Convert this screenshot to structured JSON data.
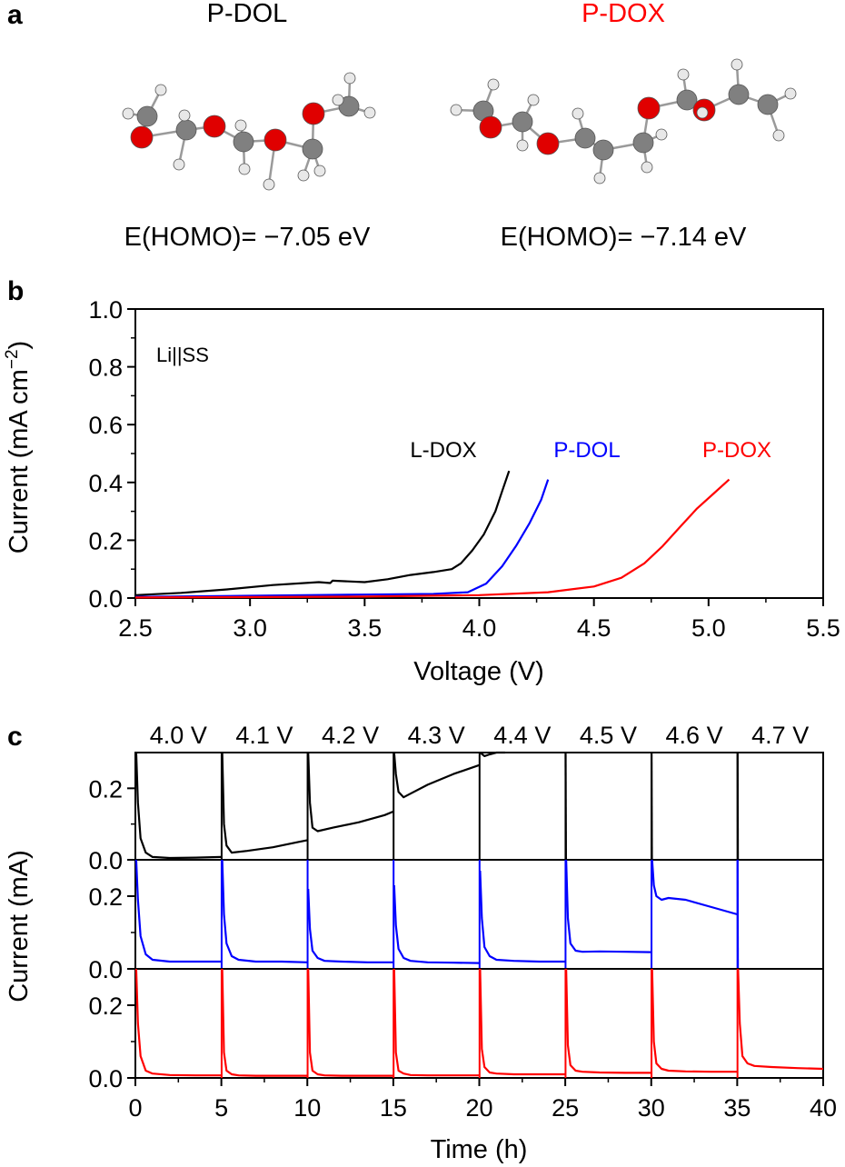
{
  "panel_a": {
    "label": "a",
    "molecules": [
      {
        "name": "P-DOL",
        "name_color": "#000000",
        "homo": "E(HOMO)= −7.05 eV"
      },
      {
        "name": "P-DOX",
        "name_color": "#ff0000",
        "homo": "E(HOMO)= −7.14 eV"
      }
    ],
    "atom_colors": {
      "oxygen": "#e00000",
      "carbon": "#808080",
      "hydrogen": "#e8e8e8"
    }
  },
  "chart_data": [
    {
      "panel": "b",
      "type": "line",
      "xlabel": "Voltage (V)",
      "ylabel_main": "Current (mA cm",
      "ylabel_sup": "−2",
      "ylabel_tail": ")",
      "xlim": [
        2.5,
        5.5
      ],
      "ylim": [
        0.0,
        1.0
      ],
      "xticks": [
        "2.5",
        "3.0",
        "3.5",
        "4.0",
        "4.5",
        "5.0",
        "5.5"
      ],
      "yticks": [
        "0.0",
        "0.2",
        "0.4",
        "0.6",
        "0.8",
        "1.0"
      ],
      "annotation": "Li||SS",
      "series": [
        {
          "name": "L-DOX",
          "color": "#000000",
          "x": [
            2.5,
            2.7,
            2.9,
            3.1,
            3.3,
            3.35,
            3.36,
            3.5,
            3.6,
            3.7,
            3.8,
            3.88,
            3.92,
            3.97,
            4.02,
            4.07,
            4.1,
            4.13
          ],
          "y": [
            0.01,
            0.018,
            0.03,
            0.045,
            0.055,
            0.052,
            0.06,
            0.055,
            0.065,
            0.08,
            0.09,
            0.1,
            0.12,
            0.165,
            0.22,
            0.3,
            0.37,
            0.44
          ]
        },
        {
          "name": "P-DOL",
          "color": "#0000ff",
          "x": [
            2.5,
            3.0,
            3.5,
            3.8,
            3.95,
            4.03,
            4.1,
            4.16,
            4.22,
            4.27,
            4.3
          ],
          "y": [
            0.004,
            0.008,
            0.012,
            0.014,
            0.02,
            0.05,
            0.11,
            0.18,
            0.26,
            0.34,
            0.41
          ]
        },
        {
          "name": "P-DOX",
          "color": "#ff0000",
          "x": [
            2.5,
            3.5,
            4.0,
            4.3,
            4.5,
            4.62,
            4.72,
            4.8,
            4.88,
            4.95,
            5.02,
            5.09
          ],
          "y": [
            0.002,
            0.005,
            0.01,
            0.02,
            0.04,
            0.07,
            0.12,
            0.18,
            0.25,
            0.31,
            0.36,
            0.41
          ]
        }
      ]
    },
    {
      "panel": "c",
      "type": "line",
      "xlabel": "Time (h)",
      "ylabel": "Current (mA)",
      "xlim": [
        0,
        40
      ],
      "ylim": [
        0.0,
        0.3
      ],
      "xticks": [
        "0",
        "5",
        "10",
        "15",
        "20",
        "25",
        "30",
        "35",
        "40"
      ],
      "yticks": [
        "0.0",
        "0.2"
      ],
      "step_labels": [
        "4.0 V",
        "4.1 V",
        "4.2 V",
        "4.3 V",
        "4.4 V",
        "4.5 V",
        "4.6 V",
        "4.7 V"
      ],
      "step_starts": [
        0,
        5,
        10,
        15,
        20,
        25,
        30,
        35
      ],
      "series": [
        {
          "name": "L-DOX",
          "color": "#000000",
          "segments": [
            {
              "x": [
                0.05,
                0.15,
                0.3,
                0.6,
                1.0,
                2.0,
                3.5,
                5.0
              ],
              "y": [
                0.3,
                0.16,
                0.06,
                0.02,
                0.008,
                0.005,
                0.006,
                0.008
              ]
            },
            {
              "x": [
                5.05,
                5.15,
                5.3,
                5.6,
                6.5,
                8.0,
                9.5,
                10.0
              ],
              "y": [
                0.3,
                0.1,
                0.04,
                0.02,
                0.025,
                0.035,
                0.05,
                0.055
              ]
            },
            {
              "x": [
                10.05,
                10.15,
                10.3,
                10.6,
                11.5,
                13.0,
                14.5,
                15.0
              ],
              "y": [
                0.3,
                0.16,
                0.09,
                0.08,
                0.09,
                0.105,
                0.125,
                0.135
              ]
            },
            {
              "x": [
                15.05,
                15.15,
                15.3,
                15.6,
                16.0,
                17.0,
                18.5,
                20.0
              ],
              "y": [
                0.3,
                0.24,
                0.19,
                0.175,
                0.185,
                0.21,
                0.24,
                0.265
              ]
            },
            {
              "x": [
                20.05,
                20.3,
                20.6,
                21.0,
                21.5
              ],
              "y": [
                0.3,
                0.29,
                0.295,
                0.3,
                0.3
              ]
            },
            {
              "x": [
                25.02,
                25.04
              ],
              "y": [
                0.3,
                0.0
              ]
            },
            {
              "x": [
                30.02,
                30.04
              ],
              "y": [
                0.3,
                0.0
              ]
            },
            {
              "x": [
                35.02,
                35.04
              ],
              "y": [
                0.3,
                0.0
              ]
            }
          ]
        },
        {
          "name": "P-DOL",
          "color": "#0000ff",
          "segments": [
            {
              "x": [
                0.05,
                0.15,
                0.3,
                0.6,
                1.0,
                2.0,
                3.5,
                5.0
              ],
              "y": [
                0.3,
                0.19,
                0.09,
                0.04,
                0.025,
                0.02,
                0.02,
                0.02
              ]
            },
            {
              "x": [
                5.05,
                5.15,
                5.3,
                5.6,
                6.0,
                7.0,
                8.5,
                10.0
              ],
              "y": [
                0.3,
                0.15,
                0.07,
                0.035,
                0.025,
                0.02,
                0.02,
                0.018
              ]
            },
            {
              "x": [
                10.05,
                10.15,
                10.3,
                10.6,
                11.0,
                12.0,
                13.5,
                15.0
              ],
              "y": [
                0.22,
                0.11,
                0.05,
                0.03,
                0.022,
                0.02,
                0.018,
                0.018
              ]
            },
            {
              "x": [
                15.05,
                15.15,
                15.3,
                15.6,
                16.0,
                17.0,
                18.5,
                20.0
              ],
              "y": [
                0.23,
                0.12,
                0.055,
                0.03,
                0.022,
                0.018,
                0.017,
                0.016
              ]
            },
            {
              "x": [
                20.05,
                20.15,
                20.3,
                20.6,
                21.0,
                22.0,
                23.5,
                25.0
              ],
              "y": [
                0.27,
                0.14,
                0.06,
                0.035,
                0.025,
                0.022,
                0.02,
                0.02
              ]
            },
            {
              "x": [
                25.05,
                25.15,
                25.3,
                25.6,
                26.0,
                27.0,
                28.5,
                30.0
              ],
              "y": [
                0.3,
                0.14,
                0.07,
                0.05,
                0.047,
                0.048,
                0.047,
                0.046
              ]
            },
            {
              "x": [
                30.05,
                30.15,
                30.3,
                30.6,
                31.0,
                32.0,
                33.5,
                35.0
              ],
              "y": [
                0.3,
                0.23,
                0.2,
                0.19,
                0.195,
                0.19,
                0.17,
                0.15
              ]
            },
            {
              "x": [
                35.02,
                35.04
              ],
              "y": [
                0.3,
                0.0
              ]
            }
          ]
        },
        {
          "name": "P-DOX",
          "color": "#ff0000",
          "segments": [
            {
              "x": [
                0.05,
                0.15,
                0.3,
                0.6,
                1.0,
                2.0,
                3.5,
                5.0
              ],
              "y": [
                0.3,
                0.15,
                0.06,
                0.02,
                0.012,
                0.008,
                0.007,
                0.007
              ]
            },
            {
              "x": [
                5.05,
                5.15,
                5.3,
                5.6,
                6.0,
                7.0,
                8.5,
                10.0
              ],
              "y": [
                0.3,
                0.07,
                0.02,
                0.01,
                0.007,
                0.006,
                0.006,
                0.006
              ]
            },
            {
              "x": [
                10.05,
                10.15,
                10.3,
                10.6,
                11.0,
                12.0,
                13.5,
                15.0
              ],
              "y": [
                0.3,
                0.07,
                0.02,
                0.01,
                0.007,
                0.006,
                0.006,
                0.006
              ]
            },
            {
              "x": [
                15.05,
                15.15,
                15.3,
                15.6,
                16.0,
                17.0,
                18.5,
                20.0
              ],
              "y": [
                0.3,
                0.07,
                0.02,
                0.012,
                0.008,
                0.007,
                0.007,
                0.007
              ]
            },
            {
              "x": [
                20.05,
                20.15,
                20.3,
                20.6,
                21.0,
                22.0,
                23.5,
                25.0
              ],
              "y": [
                0.3,
                0.08,
                0.03,
                0.015,
                0.012,
                0.01,
                0.01,
                0.01
              ]
            },
            {
              "x": [
                25.05,
                25.15,
                25.3,
                25.6,
                26.0,
                27.0,
                28.5,
                30.0
              ],
              "y": [
                0.3,
                0.09,
                0.035,
                0.02,
                0.017,
                0.015,
                0.014,
                0.014
              ]
            },
            {
              "x": [
                30.05,
                30.15,
                30.3,
                30.6,
                31.0,
                32.0,
                33.5,
                35.0
              ],
              "y": [
                0.3,
                0.1,
                0.04,
                0.025,
                0.02,
                0.018,
                0.017,
                0.017
              ]
            },
            {
              "x": [
                35.05,
                35.15,
                35.3,
                35.6,
                36.0,
                37.0,
                38.5,
                40.0
              ],
              "y": [
                0.3,
                0.15,
                0.06,
                0.04,
                0.033,
                0.03,
                0.027,
                0.025
              ]
            }
          ]
        }
      ]
    }
  ]
}
